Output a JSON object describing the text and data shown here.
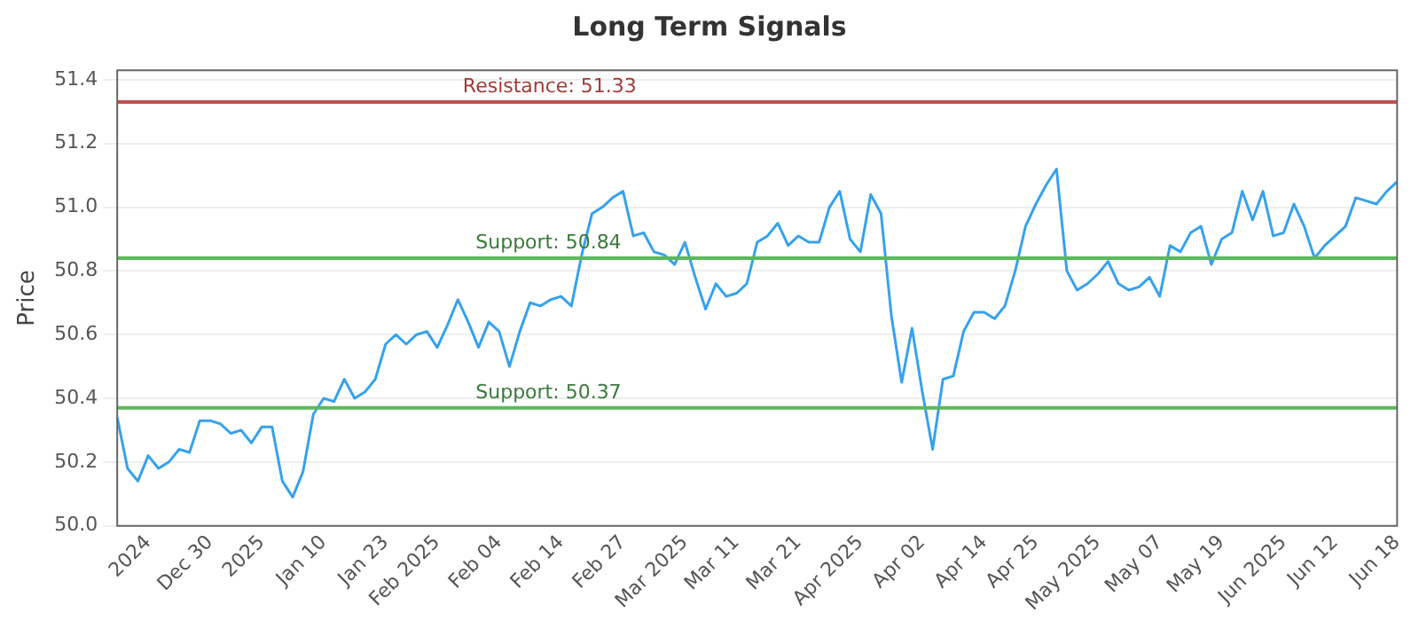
{
  "chart_data": {
    "type": "line",
    "title": "Long Term Signals",
    "ylabel": "Price",
    "categories": [
      null,
      null,
      null,
      "2024",
      null,
      null,
      null,
      null,
      null,
      "Dec 30",
      null,
      null,
      null,
      null,
      "2025",
      null,
      null,
      null,
      null,
      null,
      "Jan 10",
      null,
      null,
      null,
      null,
      null,
      "Jan 23",
      null,
      null,
      null,
      null,
      "Feb 2025",
      null,
      null,
      null,
      null,
      null,
      "Feb 04",
      null,
      null,
      null,
      null,
      null,
      "Feb 14",
      null,
      null,
      null,
      null,
      null,
      "Feb 27",
      null,
      null,
      null,
      null,
      null,
      "Mar 2025",
      null,
      null,
      null,
      null,
      "Mar 11",
      null,
      null,
      null,
      null,
      null,
      "Mar 21",
      null,
      null,
      null,
      null,
      null,
      "Apr 2025",
      null,
      null,
      null,
      null,
      null,
      "Apr 02",
      null,
      null,
      null,
      null,
      null,
      "Apr 14",
      null,
      null,
      null,
      null,
      "Apr 25",
      null,
      null,
      null,
      null,
      null,
      "May 2025",
      null,
      null,
      null,
      null,
      null,
      "May 07",
      null,
      null,
      null,
      null,
      null,
      "May 19",
      null,
      null,
      null,
      null,
      null,
      "Jun 2025",
      null,
      null,
      null,
      null,
      "Jun 12",
      null,
      null,
      null,
      null,
      null,
      "Jun 18"
    ],
    "series": [
      {
        "color": "#36a2eb",
        "values": [
          50.34,
          50.18,
          50.14,
          50.22,
          50.18,
          50.2,
          50.24,
          50.23,
          50.33,
          50.33,
          50.32,
          50.29,
          50.3,
          50.26,
          50.31,
          50.31,
          50.14,
          50.09,
          50.17,
          50.35,
          50.4,
          50.39,
          50.46,
          50.4,
          50.42,
          50.46,
          50.57,
          50.6,
          50.57,
          50.6,
          50.61,
          50.56,
          50.63,
          50.71,
          50.64,
          50.56,
          50.64,
          50.61,
          50.5,
          50.61,
          50.7,
          50.69,
          50.71,
          50.72,
          50.69,
          50.85,
          50.98,
          51.0,
          51.03,
          51.05,
          50.91,
          50.92,
          50.86,
          50.85,
          50.82,
          50.89,
          50.78,
          50.68,
          50.76,
          50.72,
          50.73,
          50.76,
          50.89,
          50.91,
          50.95,
          50.88,
          50.91,
          50.89,
          50.89,
          51.0,
          51.05,
          50.9,
          50.86,
          51.04,
          50.98,
          50.66,
          50.45,
          50.62,
          50.42,
          50.24,
          50.46,
          50.47,
          50.61,
          50.67,
          50.67,
          50.65,
          50.69,
          50.8,
          50.94,
          51.01,
          51.07,
          51.12,
          50.8,
          50.74,
          50.76,
          50.79,
          50.83,
          50.76,
          50.74,
          50.75,
          50.78,
          50.72,
          50.88,
          50.86,
          50.92,
          50.94,
          50.82,
          50.9,
          50.92,
          51.05,
          50.96,
          51.05,
          50.91,
          50.92,
          51.01,
          50.94,
          50.84,
          50.88,
          50.91,
          50.94,
          51.03,
          51.02,
          51.01,
          51.05,
          51.08
        ]
      }
    ],
    "ylim": [
      50.0,
      51.43
    ],
    "yticks": [
      {
        "value": 50.0,
        "label": "50.0"
      },
      {
        "value": 50.2,
        "label": "50.2"
      },
      {
        "value": 50.4,
        "label": "50.4"
      },
      {
        "value": 50.6,
        "label": "50.6"
      },
      {
        "value": 50.8,
        "label": "50.8"
      },
      {
        "value": 51.0,
        "label": "51.0"
      },
      {
        "value": 51.2,
        "label": "51.2"
      },
      {
        "value": 51.4,
        "label": "51.4"
      }
    ],
    "grid": "y",
    "legend": false,
    "marker": "none",
    "line_style": "solid",
    "ref_lines": [
      {
        "axis": "y",
        "value": 51.33,
        "label": "Resistance: 51.33",
        "color": "#c0504d"
      },
      {
        "axis": "y",
        "value": 50.84,
        "label": "Support: 50.84",
        "color": "#5cb85c"
      },
      {
        "axis": "y",
        "value": 50.37,
        "label": "Support: 50.37",
        "color": "#5cb85c"
      }
    ]
  }
}
